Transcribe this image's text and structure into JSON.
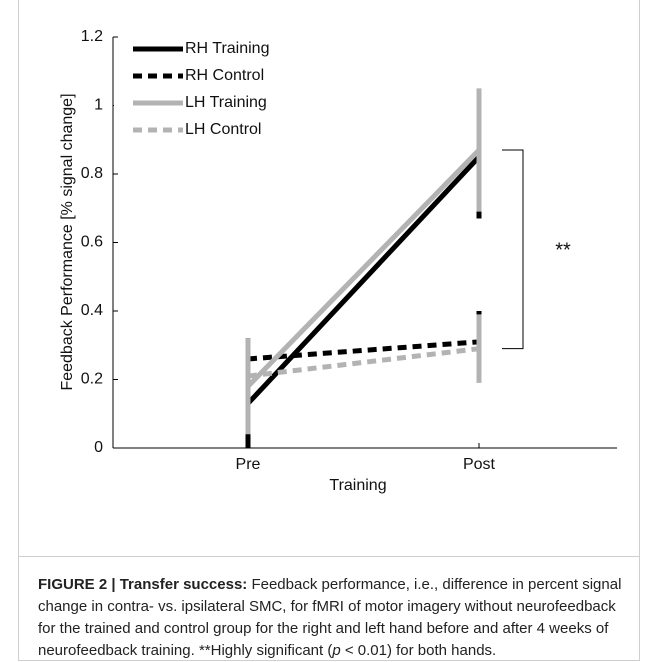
{
  "chart_data": {
    "type": "line",
    "x_label": "Training",
    "y_label": "Feedback Performance  [% signal change]",
    "categories": [
      "Pre",
      "Post"
    ],
    "series": [
      {
        "name": "RH Training",
        "color": "#000000",
        "line_style": "solid",
        "values": [
          0.13,
          0.85
        ],
        "errors": [
          0.19,
          0.18
        ]
      },
      {
        "name": "RH Control",
        "color": "#000000",
        "line_style": "dashed",
        "values": [
          0.26,
          0.31
        ],
        "errors": [
          0.06,
          0.09
        ]
      },
      {
        "name": "LH Training",
        "color": "#b3b3b3",
        "line_style": "solid",
        "values": [
          0.18,
          0.87
        ],
        "errors": [
          0.14,
          0.18
        ]
      },
      {
        "name": "LH Control",
        "color": "#b3b3b3",
        "line_style": "dashed",
        "values": [
          0.21,
          0.29
        ],
        "errors": [
          0.1,
          0.1
        ]
      }
    ],
    "ylim": [
      0,
      1.2
    ],
    "yticks": [
      0,
      0.2,
      0.4,
      0.6,
      0.8,
      1,
      1.2
    ],
    "legend": "upper left",
    "annotation": "**"
  },
  "caption": {
    "label": "FIGURE 2 | Transfer success:",
    "text_before": " Feedback performance, i.e., difference in percent signal change in contra- vs. ipsilateral SMC, for fMRI of motor imagery without neurofeedback for the trained and control group for the right and left hand before and after 4 weeks of neurofeedback training. **Highly significant (",
    "italic": "p",
    "text_after": " < 0.01) for both hands."
  }
}
